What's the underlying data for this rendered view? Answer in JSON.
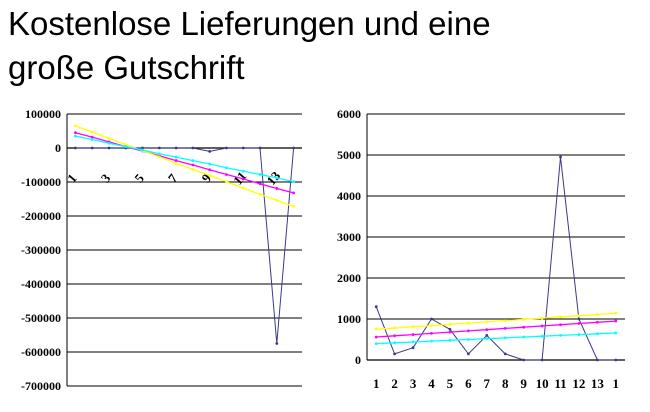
{
  "title_line1": "Kostenlose Lieferungen und eine",
  "title_line2": "große Gutschrift",
  "chart_data": [
    {
      "type": "line",
      "ylim": [
        -700000,
        100000
      ],
      "yticks": [
        100000,
        0,
        -100000,
        -200000,
        -300000,
        -400000,
        -500000,
        -600000,
        -700000
      ],
      "ytick_labels": [
        "100000",
        "0",
        "-100000",
        "-200000",
        "-300000",
        "-400000",
        "-500000",
        "-600000",
        "-700000"
      ],
      "x": [
        1,
        2,
        3,
        4,
        5,
        6,
        7,
        8,
        9,
        10,
        11,
        12,
        13,
        14
      ],
      "xtick_labels": [
        "1",
        "3",
        "5",
        "7",
        "9",
        "11",
        "13"
      ],
      "grid": true,
      "series": [
        {
          "color": "#3a3a8c",
          "values": [
            0,
            0,
            0,
            0,
            0,
            0,
            0,
            0,
            -10000,
            0,
            0,
            0,
            -575000,
            0
          ]
        },
        {
          "color": "#ff00ff",
          "values": [
            45000,
            32000,
            18000,
            4000,
            -9000,
            -23000,
            -37000,
            -50000,
            -64000,
            -78000,
            -91000,
            -105000,
            -119000,
            -132000
          ]
        },
        {
          "color": "#ffff00",
          "values": [
            65000,
            47000,
            28000,
            10000,
            -8000,
            -26000,
            -45000,
            -63000,
            -81000,
            -99000,
            -118000,
            -136000,
            -154000,
            -172000
          ]
        },
        {
          "color": "#00ffff",
          "values": [
            35000,
            25000,
            14000,
            4000,
            -6000,
            -17000,
            -27000,
            -37000,
            -47000,
            -58000,
            -68000,
            -78000,
            -88000,
            -99000
          ]
        }
      ]
    },
    {
      "type": "line",
      "ylim": [
        0,
        6000
      ],
      "yticks": [
        6000,
        5000,
        4000,
        3000,
        2000,
        1000,
        0
      ],
      "ytick_labels": [
        "6000",
        "5000",
        "4000",
        "3000",
        "2000",
        "1000",
        "0"
      ],
      "x": [
        1,
        2,
        3,
        4,
        5,
        6,
        7,
        8,
        9,
        10,
        11,
        12,
        13,
        14
      ],
      "xtick_labels": [
        "1",
        "2",
        "3",
        "4",
        "5",
        "6",
        "7",
        "8",
        "9",
        "10",
        "11",
        "12",
        "13",
        "1"
      ],
      "grid": true,
      "series": [
        {
          "color": "#3a3a8c",
          "values": [
            1300,
            150,
            300,
            1000,
            750,
            150,
            600,
            150,
            0,
            0,
            4950,
            1000,
            0,
            0
          ]
        },
        {
          "color": "#ffff00",
          "values": [
            750,
            780,
            810,
            840,
            870,
            900,
            930,
            960,
            990,
            1020,
            1050,
            1080,
            1110,
            1140
          ]
        },
        {
          "color": "#ff00ff",
          "values": [
            560,
            590,
            620,
            650,
            680,
            710,
            740,
            770,
            800,
            830,
            860,
            890,
            920,
            950
          ]
        },
        {
          "color": "#00ffff",
          "values": [
            400,
            420,
            440,
            460,
            480,
            500,
            520,
            540,
            560,
            580,
            600,
            620,
            640,
            660
          ]
        }
      ]
    }
  ]
}
